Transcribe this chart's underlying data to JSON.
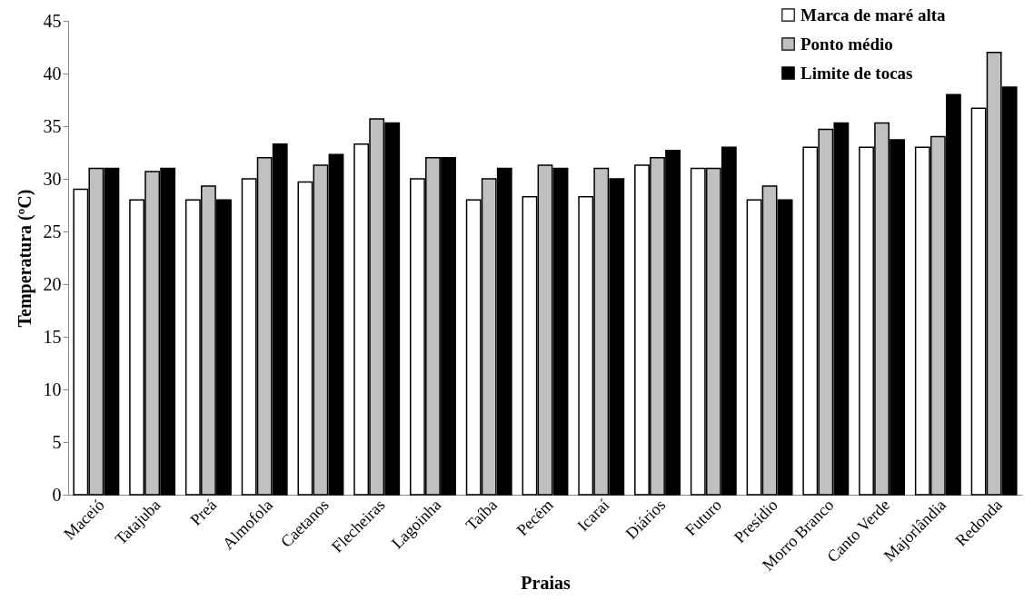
{
  "chart_data": {
    "type": "bar",
    "xlabel": "Praias",
    "ylabel": "Temperatura (ºC)",
    "categories": [
      "Maceió",
      "Tatajuba",
      "Preá",
      "Almofola",
      "Caetanos",
      "Flecheiras",
      "Lagoinha",
      "Taíba",
      "Pecém",
      "Icaraí",
      "Diários",
      "Futuro",
      "Presídio",
      "Morro Branco",
      "Canto Verde",
      "Majorlândia",
      "Redonda"
    ],
    "series": [
      {
        "name": "Marca de maré alta",
        "color": "#ffffff",
        "values": [
          29,
          28,
          28,
          30,
          29.7,
          33.3,
          30,
          28,
          28.3,
          28.3,
          31.3,
          31,
          28,
          33,
          33,
          33,
          36.7
        ]
      },
      {
        "name": "Ponto médio",
        "color": "#c0c0c0",
        "values": [
          31,
          30.7,
          29.3,
          32,
          31.3,
          35.7,
          32,
          30,
          31.3,
          31,
          32,
          31,
          29.3,
          34.7,
          35.3,
          34,
          42
        ]
      },
      {
        "name": "Limite de tocas",
        "color": "#000000",
        "values": [
          31,
          31,
          28,
          33.3,
          32.3,
          35.3,
          32,
          31,
          31,
          30,
          32.7,
          33,
          28,
          35.3,
          33.7,
          38,
          38.7
        ]
      }
    ],
    "ylim": [
      0,
      45
    ],
    "yticks": [
      0,
      5,
      10,
      15,
      20,
      25,
      30,
      35,
      40,
      45
    ],
    "grid": false,
    "legend": "top right"
  }
}
